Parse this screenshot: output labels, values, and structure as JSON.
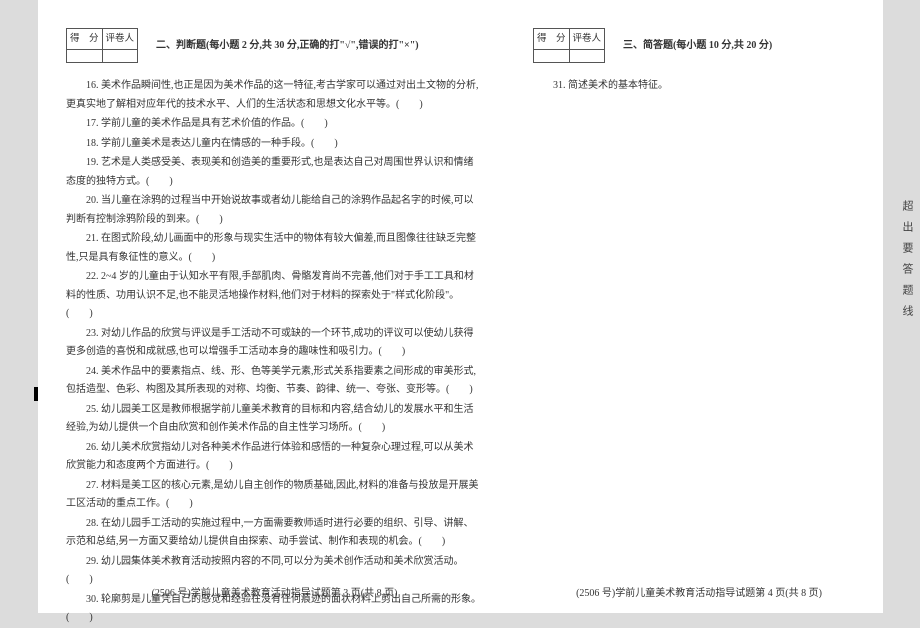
{
  "score_header": {
    "score": "得　分",
    "reviewer": "评卷人"
  },
  "section2": {
    "title": "二、判断题(每小题 2 分,共 30 分,正确的打\"√\",错误的打\"×\")",
    "items": [
      "16. 美术作品瞬间性,也正是因为美术作品的这一特征,考古学家可以通过对出土文物的分析,更真实地了解相对应年代的技术水平、人们的生活状态和思想文化水平等。(　　)",
      "17. 学前儿童的美术作品是具有艺术价值的作品。(　　)",
      "18. 学前儿童美术是表达儿童内在情感的一种手段。(　　)",
      "19. 艺术是人类感受美、表现美和创造美的重要形式,也是表达自己对周围世界认识和情绪态度的独特方式。(　　)",
      "20. 当儿童在涂鸦的过程当中开始说故事或者幼儿能给自己的涂鸦作品起名字的时候,可以判断有控制涂鸦阶段的到来。(　　)",
      "21. 在图式阶段,幼儿画面中的形象与现实生活中的物体有较大偏差,而且图像往往缺乏完整性,只是具有象征性的意义。(　　)",
      "22. 2~4 岁的儿童由于认知水平有限,手部肌肉、骨骼发育尚不完善,他们对于手工工具和材料的性质、功用认识不足,也不能灵活地操作材料,他们对于材料的探索处于\"样式化阶段\"。(　　)",
      "23. 对幼儿作品的欣赏与评议是手工活动不可或缺的一个环节,成功的评议可以使幼儿获得更多创造的喜悦和成就感,也可以增强手工活动本身的趣味性和吸引力。(　　)",
      "24. 美术作品中的要素指点、线、形、色等美学元素,形式关系指要素之间形成的审美形式,包括造型、色彩、构图及其所表现的对称、均衡、节奏、韵律、统一、夸张、变形等。(　　)",
      "25. 幼儿园美工区是教师根据学前儿童美术教育的目标和内容,结合幼儿的发展水平和生活经验,为幼儿提供一个自由欣赏和创作美术作品的自主性学习场所。(　　)",
      "26. 幼儿美术欣赏指幼儿对各种美术作品进行体验和感悟的一种复杂心理过程,可以从美术欣赏能力和态度两个方面进行。(　　)",
      "27. 材料是美工区的核心元素,是幼儿自主创作的物质基础,因此,材料的准备与投放是开展美工区活动的重点工作。(　　)",
      "28. 在幼儿园手工活动的实施过程中,一方面需要教师适时进行必要的组织、引导、讲解、示范和总结,另一方面又要给幼儿提供自由探索、动手尝试、制作和表现的机会。(　　)",
      "29. 幼儿园集体美术教育活动按照内容的不同,可以分为美术创作活动和美术欣赏活动。(　　)",
      "30. 轮廓剪是儿童凭自己的感觉和经验在没有任何痕迹的面状材料上剪出自己所需的形象。(　　)"
    ]
  },
  "section3": {
    "title": "三、简答题(每小题 10 分,共 20 分)",
    "items": [
      "31. 简述美术的基本特征。"
    ]
  },
  "footer_left": "(2506 号)学前儿童美术教育活动指导试题第 3 页(共 8 页)",
  "footer_right": "(2506 号)学前儿童美术教育活动指导试题第 4 页(共 8 页)",
  "side_text": "超出要答题线",
  "colors": {
    "page_bg": "#ffffff",
    "body_bg": "#dcdcdc",
    "text": "#333333",
    "border": "#555555"
  }
}
